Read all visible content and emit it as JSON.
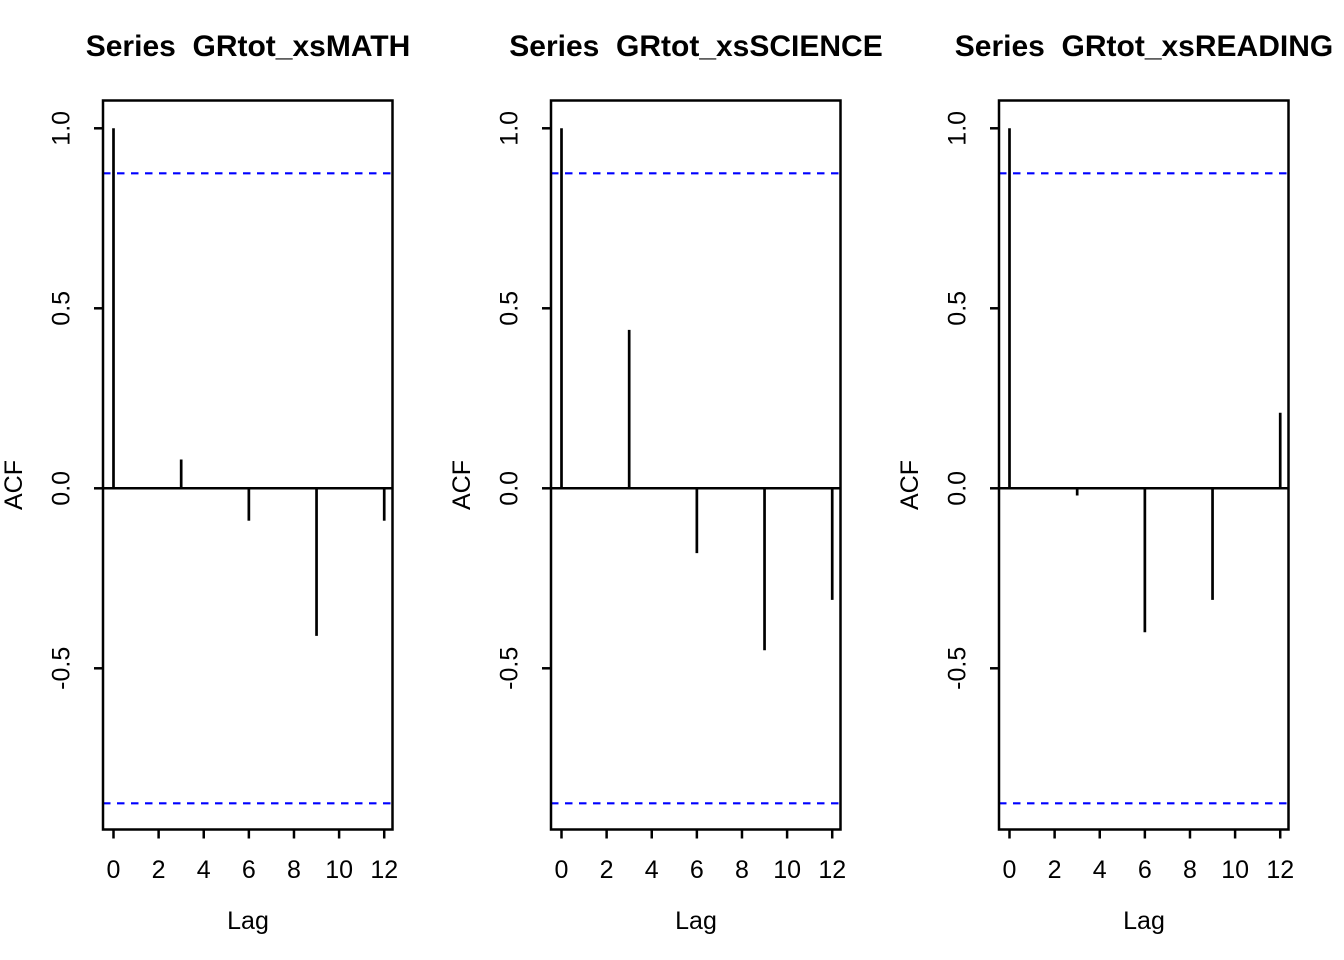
{
  "figure": {
    "background_color": "#ffffff",
    "spike_color": "#000000",
    "box_color": "#000000",
    "confidence_line_color": "#0000ff",
    "confidence_line_style": "dashed"
  },
  "chart_data": [
    {
      "type": "bar",
      "subtype": "acf-stem",
      "title": "Series  GRtot_xsMATH",
      "xlabel": "Lag",
      "ylabel": "ACF",
      "x": [
        0,
        1,
        2,
        3,
        4,
        5,
        6,
        7,
        8,
        9,
        10,
        11,
        12
      ],
      "values": [
        1.0,
        0,
        0,
        0.08,
        0,
        0,
        -0.09,
        0,
        0,
        -0.41,
        0,
        0,
        -0.09
      ],
      "confidence_bounds": [
        0.875,
        -0.875
      ],
      "x_ticks": [
        0,
        2,
        4,
        6,
        8,
        10,
        12
      ],
      "y_tick_labels": [
        "1.0",
        "0.5",
        "0.0",
        "-0.5"
      ],
      "y_tick_values": [
        1.0,
        0.5,
        0.0,
        -0.5
      ],
      "xlim": [
        -0.48,
        12.48
      ],
      "ylim": [
        -0.95,
        1.08
      ],
      "grid": false,
      "legend": null
    },
    {
      "type": "bar",
      "subtype": "acf-stem",
      "title": "Series  GRtot_xsSCIENCE",
      "xlabel": "Lag",
      "ylabel": "ACF",
      "x": [
        0,
        1,
        2,
        3,
        4,
        5,
        6,
        7,
        8,
        9,
        10,
        11,
        12
      ],
      "values": [
        1.0,
        0,
        0,
        0.44,
        0,
        0,
        -0.18,
        0,
        0,
        -0.45,
        0,
        0,
        -0.31
      ],
      "confidence_bounds": [
        0.875,
        -0.875
      ],
      "x_ticks": [
        0,
        2,
        4,
        6,
        8,
        10,
        12
      ],
      "y_tick_labels": [
        "1.0",
        "0.5",
        "0.0",
        "-0.5"
      ],
      "y_tick_values": [
        1.0,
        0.5,
        0.0,
        -0.5
      ],
      "xlim": [
        -0.48,
        12.48
      ],
      "ylim": [
        -0.95,
        1.08
      ],
      "grid": false,
      "legend": null
    },
    {
      "type": "bar",
      "subtype": "acf-stem",
      "title": "Series  GRtot_xsREADING",
      "xlabel": "Lag",
      "ylabel": "ACF",
      "x": [
        0,
        1,
        2,
        3,
        4,
        5,
        6,
        7,
        8,
        9,
        10,
        11,
        12
      ],
      "values": [
        1.0,
        0,
        0,
        -0.02,
        0,
        0,
        -0.4,
        0,
        0,
        -0.31,
        0,
        0,
        0.21
      ],
      "confidence_bounds": [
        0.875,
        -0.875
      ],
      "x_ticks": [
        0,
        2,
        4,
        6,
        8,
        10,
        12
      ],
      "y_tick_labels": [
        "1.0",
        "0.5",
        "0.0",
        "-0.5"
      ],
      "y_tick_values": [
        1.0,
        0.5,
        0.0,
        -0.5
      ],
      "xlim": [
        -0.48,
        12.48
      ],
      "ylim": [
        -0.95,
        1.08
      ],
      "grid": false,
      "legend": null
    }
  ]
}
